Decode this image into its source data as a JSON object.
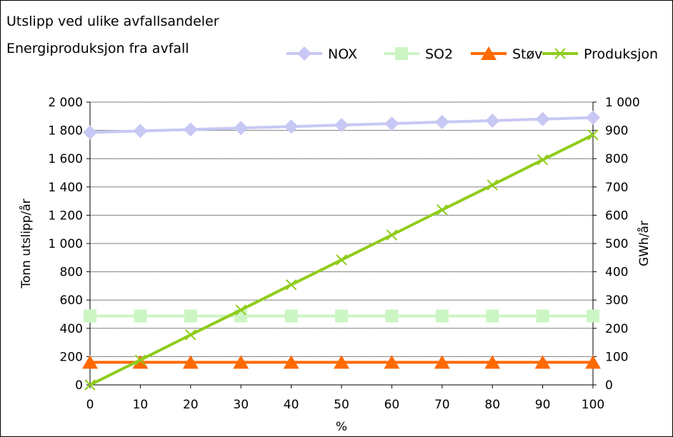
{
  "chart_data": {
    "type": "line",
    "title_lines": [
      "Utslipp ved ulike avfallsandeler",
      "Energiproduksjon fra avfall"
    ],
    "xlabel": "%",
    "ylabel": "Tonn utslipp/år",
    "y2label": "GWh/år",
    "x": [
      0,
      10,
      20,
      30,
      40,
      50,
      60,
      70,
      80,
      90,
      100
    ],
    "xticks": [
      "0",
      "10",
      "20",
      "30",
      "40",
      "50",
      "60",
      "70",
      "80",
      "90",
      "100"
    ],
    "ylim": [
      0,
      2000
    ],
    "yticks": [
      0,
      200,
      400,
      600,
      800,
      1000,
      1200,
      1400,
      1600,
      1800,
      2000
    ],
    "ytick_labels": [
      "0",
      "200",
      "400",
      "600",
      "800",
      "1 000",
      "1 200",
      "1 400",
      "1 600",
      "1 800",
      "2 000"
    ],
    "y2lim": [
      0,
      1000
    ],
    "y2ticks": [
      0,
      100,
      200,
      300,
      400,
      500,
      600,
      700,
      800,
      900,
      1000
    ],
    "y2tick_labels": [
      "0",
      "100",
      "200",
      "300",
      "400",
      "500",
      "600",
      "700",
      "800",
      "900",
      "1 000"
    ],
    "grid": true,
    "legend_position": "top-right",
    "series": [
      {
        "name": "NOX",
        "axis": "left",
        "color": "#c8c8f4",
        "marker": "diamond",
        "values": [
          1785,
          1796,
          1806,
          1817,
          1827,
          1838,
          1848,
          1859,
          1869,
          1880,
          1890
        ]
      },
      {
        "name": "SO2",
        "axis": "left",
        "color": "#ccf5c4",
        "marker": "square",
        "values": [
          487,
          487,
          487,
          487,
          487,
          487,
          487,
          487,
          487,
          487,
          487
        ]
      },
      {
        "name": "Støv",
        "axis": "left",
        "color": "#ff6a00",
        "marker": "triangle",
        "values": [
          160,
          160,
          160,
          160,
          160,
          160,
          160,
          160,
          160,
          160,
          160
        ]
      },
      {
        "name": "Produksjon",
        "axis": "right",
        "color": "#8fcc1a",
        "marker": "x",
        "values": [
          0,
          88,
          177,
          265,
          354,
          442,
          530,
          619,
          707,
          796,
          884
        ]
      }
    ]
  }
}
